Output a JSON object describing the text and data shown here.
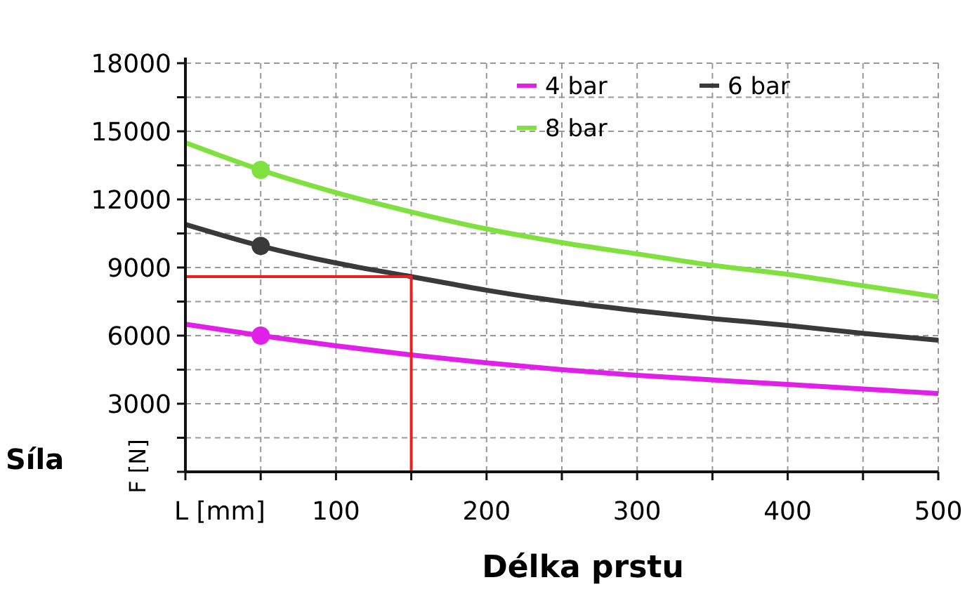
{
  "chart_data": {
    "type": "line",
    "xlabel": "Délka prstu",
    "ylabel": "F [N]",
    "annotations": [
      "Síla"
    ],
    "xlim": [
      0,
      500
    ],
    "xticks": [
      {
        "value": 0,
        "label": "L [mm]"
      },
      {
        "value": 50,
        "label": null
      },
      100,
      {
        "value": 150,
        "label": null
      },
      200,
      {
        "value": 250,
        "label": null
      },
      300,
      {
        "value": 350,
        "label": null
      },
      400,
      {
        "value": 450,
        "label": null
      },
      500
    ],
    "ylim": [
      0,
      18000
    ],
    "yticks": [
      {
        "value": 0,
        "label": null
      },
      {
        "value": 1500,
        "label": null
      },
      3000,
      {
        "value": 4500,
        "label": null
      },
      6000,
      {
        "value": 7500,
        "label": null
      },
      9000,
      {
        "value": 10500,
        "label": null
      },
      12000,
      {
        "value": 13500,
        "label": null
      },
      15000,
      {
        "value": 16500,
        "label": null
      },
      18000
    ],
    "grid": true,
    "legend": "top right",
    "line_style": "solid",
    "x": [
      0,
      50,
      100,
      150,
      200,
      250,
      300,
      350,
      400,
      450,
      500
    ],
    "series": [
      {
        "name": "4 bar",
        "color": "#e020e8",
        "values": [
          6500,
          6000,
          5550,
          5150,
          4800,
          4500,
          4250,
          4050,
          3850,
          3650,
          3450
        ]
      },
      {
        "name": "6 bar",
        "color": "#3a3a3a",
        "values": [
          10900,
          9950,
          9200,
          8600,
          8000,
          7500,
          7100,
          6750,
          6450,
          6100,
          5800
        ]
      },
      {
        "name": "8 bar",
        "color": "#80e040",
        "values": [
          14500,
          13300,
          12300,
          11450,
          10700,
          10100,
          9600,
          9100,
          8700,
          8200,
          7700
        ]
      },
      {
        "type": "line",
        "color": "#e82020",
        "x": [
          0,
          150,
          150
        ],
        "values": [
          8600,
          8600,
          0
        ]
      },
      {
        "type": "scatter",
        "color": "#e020e8",
        "x": [
          50
        ],
        "values": [
          6000
        ],
        "marker": "circle"
      },
      {
        "type": "scatter",
        "color": "#3a3a3a",
        "x": [
          50
        ],
        "values": [
          9950
        ],
        "marker": "circle"
      },
      {
        "type": "scatter",
        "color": "#80e040",
        "x": [
          50
        ],
        "values": [
          13300
        ],
        "marker": "circle"
      }
    ]
  }
}
